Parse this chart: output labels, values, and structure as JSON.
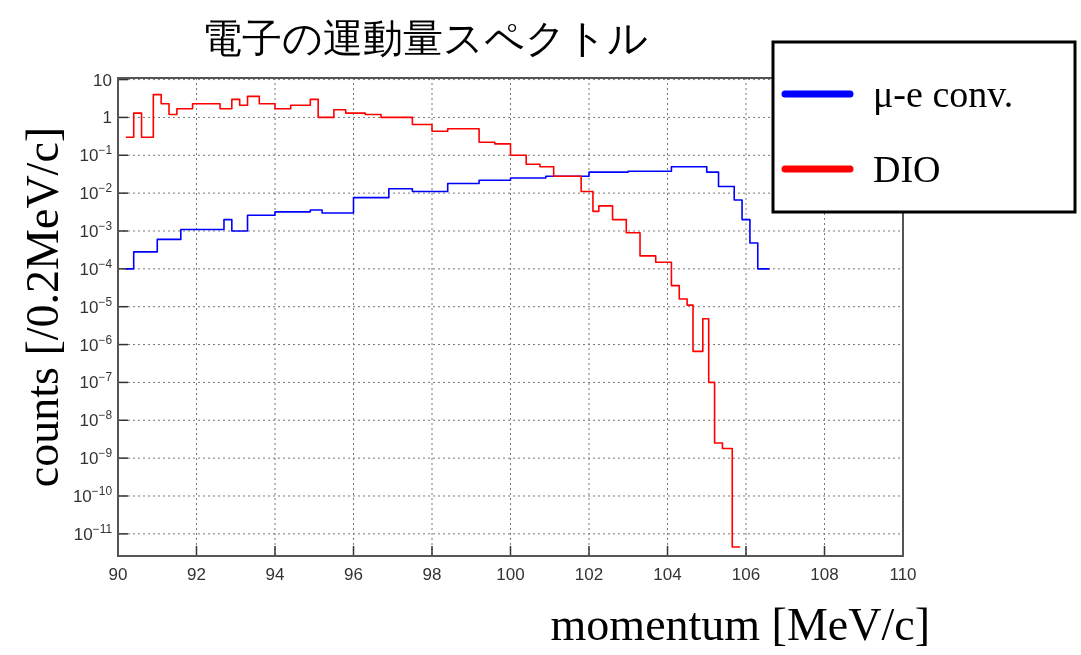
{
  "chart_data": {
    "type": "step",
    "title": "電子の運動量スペクトル",
    "xlabel": "momentum [MeV/c]",
    "ylabel": "counts [/0.2MeV/c]",
    "log": "y",
    "grid": true,
    "legend": "top right",
    "xlim": [
      90,
      110
    ],
    "xticks": [
      90,
      92,
      94,
      96,
      98,
      100,
      102,
      104,
      106,
      108,
      110
    ],
    "ylim": [
      2.6e-12,
      11
    ],
    "yticks": [
      10,
      1,
      {
        "value": 0.1,
        "label": "10$^{−1}$"
      },
      {
        "value": 0.01,
        "label": "10$^{−2}$"
      },
      {
        "value": 0.001,
        "label": "10$^{−3}$"
      },
      {
        "value": 0.0001,
        "label": "10$^{−4}$"
      },
      {
        "value": 1e-05,
        "label": "10$^{−5}$"
      },
      {
        "value": 1e-06,
        "label": "10$^{−6}$"
      },
      {
        "value": 1e-07,
        "label": "10$^{−7}$"
      },
      {
        "value": 1e-08,
        "label": "10$^{−8}$"
      },
      {
        "value": 1e-09,
        "label": "10$^{−9}$"
      },
      {
        "value": 1e-10,
        "label": "10$^{−10}$"
      },
      {
        "value": 1e-11,
        "label": "10$^{−11}$"
      }
    ],
    "series": [
      {
        "name": "μ-e conv.",
        "color": "#0000ff",
        "x": [
          90.2,
          90.4,
          91.0,
          91.6,
          92.0,
          92.7,
          92.9,
          93.3,
          94.0,
          94.9,
          95.2,
          96.0,
          96.9,
          97.5,
          98.4,
          99.2,
          100.0,
          100.9,
          102.0,
          103.0,
          104.1,
          104.6,
          105.0,
          105.3,
          105.7,
          105.9,
          106.1,
          106.3,
          106.6
        ],
        "values": [
          0.0001,
          0.00028,
          0.0006,
          0.0011,
          0.0011,
          0.002,
          0.001,
          0.0026,
          0.0032,
          0.0036,
          0.003,
          0.0076,
          0.013,
          0.011,
          0.018,
          0.022,
          0.025,
          0.028,
          0.036,
          0.038,
          0.05,
          0.05,
          0.036,
          0.015,
          0.0066,
          0.002,
          0.00048,
          0.0001,
          0.0001
        ]
      },
      {
        "name": "DIO",
        "color": "#ff0000",
        "x": [
          90.2,
          90.4,
          90.6,
          90.8,
          90.9,
          91.1,
          91.3,
          91.5,
          91.9,
          92.4,
          92.6,
          92.9,
          93.1,
          93.3,
          93.6,
          94.0,
          94.4,
          94.9,
          95.1,
          95.5,
          95.8,
          96.3,
          96.7,
          97.5,
          98.0,
          98.4,
          99.2,
          99.6,
          100.0,
          100.4,
          100.75,
          101.1,
          101.8,
          102.1,
          102.25,
          102.6,
          102.95,
          103.3,
          103.7,
          104.1,
          104.3,
          104.5,
          104.65,
          104.9,
          105.05,
          105.2,
          105.4,
          105.65,
          105.85
        ],
        "values": [
          0.3,
          1.3,
          0.3,
          0.3,
          4,
          2.3,
          1.2,
          1.7,
          2.3,
          2.3,
          1.7,
          3,
          2.1,
          3.6,
          2.3,
          1.7,
          2.1,
          3,
          1,
          1.6,
          1.3,
          1.2,
          1.0,
          0.65,
          0.43,
          0.5,
          0.22,
          0.2,
          0.1,
          0.058,
          0.05,
          0.028,
          0.011,
          0.0033,
          0.0046,
          0.002,
          0.0009,
          0.00022,
          0.00015,
          3.6e-05,
          1.6e-05,
          1.1e-05,
          6.6e-07,
          4.8e-06,
          1e-07,
          2.5e-09,
          1.8e-09,
          4.5e-12,
          4.5e-12
        ]
      }
    ]
  }
}
